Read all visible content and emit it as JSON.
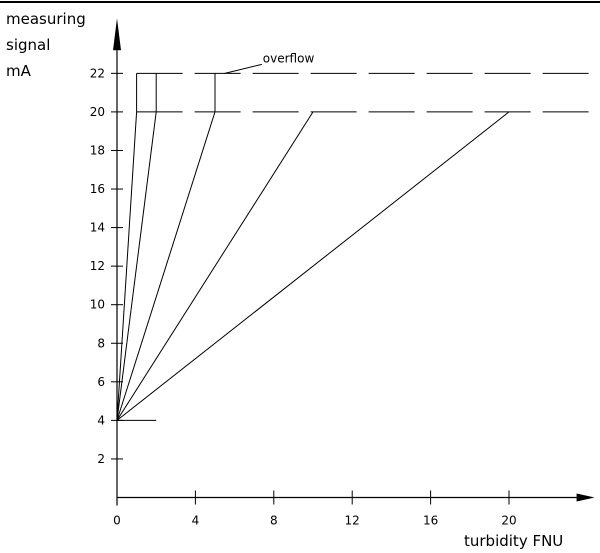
{
  "chart_data": {
    "type": "line",
    "ylabel_lines": [
      "measuring",
      "signal",
      "mA"
    ],
    "xlabel": "turbidity FNU",
    "xlim": [
      0,
      23.5
    ],
    "ylim": [
      0,
      23.2
    ],
    "xticks": [
      0,
      4,
      8,
      12,
      16,
      20
    ],
    "xtick_labels": [
      "0",
      "4",
      "8",
      "12",
      "16",
      "20"
    ],
    "yticks": [
      2,
      4,
      6,
      8,
      10,
      12,
      14,
      16,
      18,
      20,
      22
    ],
    "ytick_labels": [
      "2",
      "4",
      "6",
      "8",
      "10",
      "12",
      "14",
      "16",
      "18",
      "20",
      "22"
    ],
    "series": [
      {
        "x": [
          0,
          1
        ],
        "y": [
          4,
          20
        ],
        "overflow_to": 22
      },
      {
        "x": [
          0,
          2
        ],
        "y": [
          4,
          20
        ],
        "overflow_to": 22
      },
      {
        "x": [
          0,
          5
        ],
        "y": [
          4,
          20
        ],
        "overflow_to": 22
      },
      {
        "x": [
          0,
          10
        ],
        "y": [
          4,
          20
        ],
        "overflow_to": 20
      },
      {
        "x": [
          0,
          20
        ],
        "y": [
          4,
          20
        ],
        "overflow_to": 20
      }
    ],
    "reference_lines": [
      {
        "y": 22,
        "style": "dashed",
        "from_x": 1
      },
      {
        "y": 20,
        "style": "dashed",
        "from_x": 1
      },
      {
        "y": 4,
        "style": "solid",
        "from_x": 0,
        "to_x": 2
      }
    ],
    "annotations": [
      {
        "text": "overflow",
        "points_to": {
          "x": 5.5,
          "y": 22
        }
      }
    ],
    "grid": false
  }
}
